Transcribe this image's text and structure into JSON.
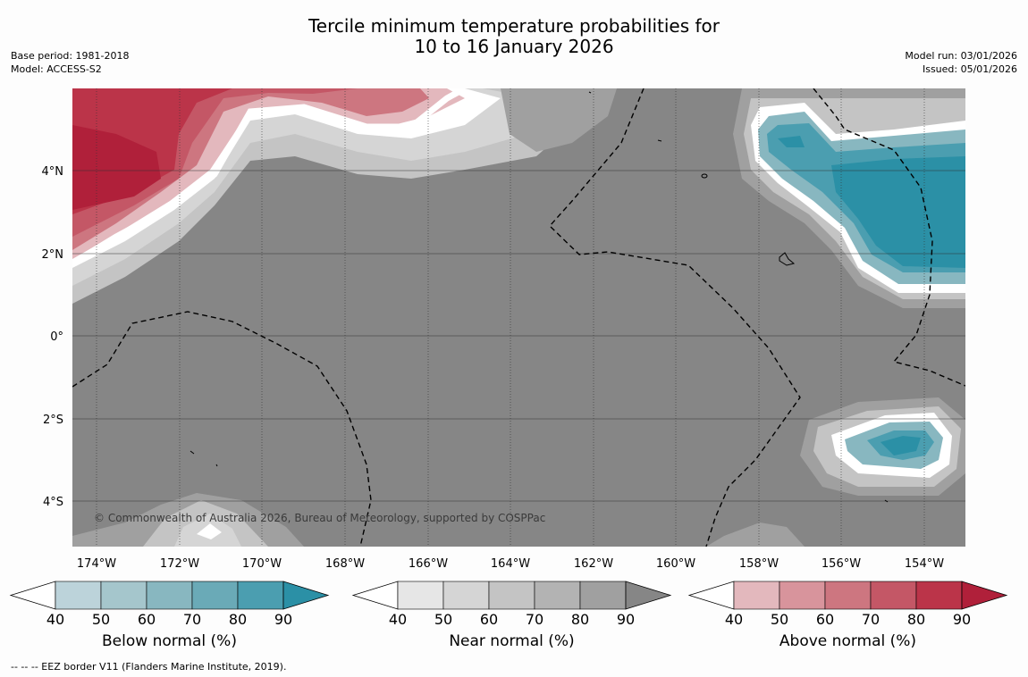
{
  "title": {
    "line1": "Tercile minimum temperature probabilities for",
    "line2": "10 to 16 January 2026"
  },
  "meta_left": {
    "base_period": "Base period: 1981-2018",
    "model": "Model: ACCESS-S2"
  },
  "meta_right": {
    "model_run": "Model run: 03/01/2026",
    "issued": "Issued: 05/01/2026"
  },
  "map": {
    "background_color": "#868686",
    "x_ticks": [
      "174°W",
      "172°W",
      "170°W",
      "168°W",
      "166°W",
      "164°W",
      "162°W",
      "160°W",
      "158°W",
      "156°W",
      "154°W"
    ],
    "y_ticks": [
      "4°N",
      "2°N",
      "0°",
      "2°S",
      "4°S"
    ],
    "copyright": "© Commonwealth of Australia 2026, Bureau of Meteorology, supported by COSPPac"
  },
  "colorbars": [
    {
      "id": "below",
      "title": "Below normal (%)",
      "labels": [
        "40",
        "50",
        "60",
        "70",
        "80",
        "90"
      ],
      "colors": [
        "#bcd3da",
        "#a5c6cc",
        "#88b7c0",
        "#6aaab7",
        "#4b9eb0",
        "#2b90a6"
      ]
    },
    {
      "id": "near",
      "title": "Near normal (%)",
      "labels": [
        "40",
        "50",
        "60",
        "70",
        "80",
        "90"
      ],
      "colors": [
        "#e6e6e6",
        "#d5d5d5",
        "#c4c4c4",
        "#b3b3b3",
        "#a0a0a0",
        "#868686"
      ]
    },
    {
      "id": "above",
      "title": "Above normal (%)",
      "labels": [
        "40",
        "50",
        "60",
        "70",
        "80",
        "90"
      ],
      "colors": [
        "#e3b8bd",
        "#d8949c",
        "#cd7680",
        "#c45766",
        "#bb3449",
        "#b0203a"
      ]
    }
  ],
  "footnote": "--  --  -- EEZ border V11 (Flanders Marine Institute, 2019)."
}
